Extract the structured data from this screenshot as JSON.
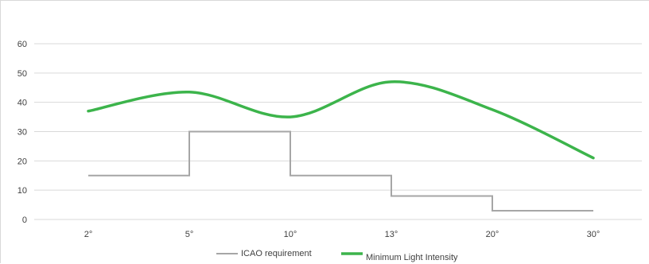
{
  "chart_data": {
    "type": "line",
    "title": "",
    "xlabel": "",
    "ylabel": "",
    "categories": [
      "2°",
      "5°",
      "10°",
      "13°",
      "20°",
      "30°"
    ],
    "ylim": [
      0,
      60
    ],
    "yticks": [
      0,
      10,
      20,
      30,
      40,
      50,
      60
    ],
    "grid": true,
    "legend_position": "bottom",
    "series": [
      {
        "name": "ICAO requirement",
        "style": "step",
        "color": "#a6a6a6",
        "values": [
          15,
          30,
          15,
          8,
          3,
          3
        ]
      },
      {
        "name": "Minimum Light Intensity",
        "style": "smooth",
        "color": "#3cb44b",
        "values": [
          37,
          43.5,
          35,
          47,
          37.5,
          21
        ]
      }
    ]
  }
}
